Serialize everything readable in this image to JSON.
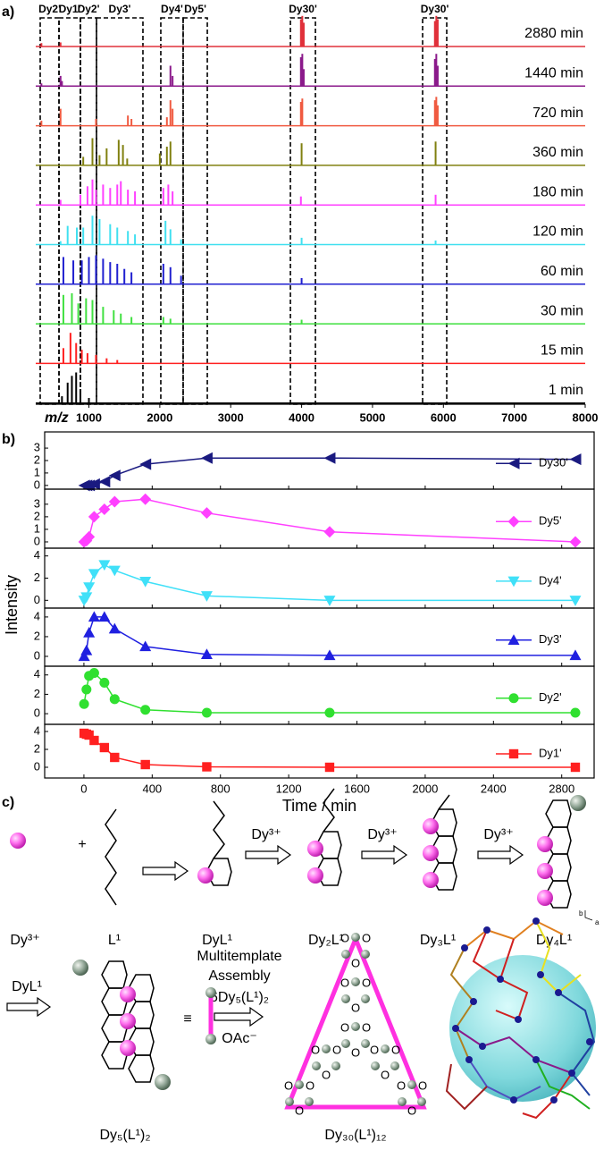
{
  "chart_data": [
    {
      "type": "spectrum",
      "xlabel": "m/z",
      "xlim": [
        250,
        8000
      ],
      "xticks": [
        1000,
        2000,
        3000,
        4000,
        5000,
        6000,
        7000,
        8000
      ],
      "regions": [
        {
          "label": "Dy2'",
          "range": [
            313,
            578
          ]
        },
        {
          "label": "Dy1'",
          "range": [
            578,
            880
          ]
        },
        {
          "label": "Dy2'",
          "range": [
            880,
            1107
          ]
        },
        {
          "label": "Dy3'",
          "range": [
            1107,
            1762
          ]
        },
        {
          "label": "Dy4'",
          "range": [
            2014,
            2329
          ]
        },
        {
          "label": "Dy5'",
          "range": [
            2329,
            2670
          ]
        },
        {
          "label": "Dy30'",
          "range": [
            3842,
            4195
          ]
        },
        {
          "label": "Dy30'",
          "range": [
            5707,
            6047
          ]
        }
      ],
      "series": [
        {
          "name": "2880 min",
          "color": "#e0303a",
          "x": [
            330,
            600,
            3990,
            4010,
            4030,
            5880,
            5900,
            5920
          ],
          "values": [
            10,
            12,
            80,
            90,
            70,
            75,
            90,
            80
          ]
        },
        {
          "name": "1440 min",
          "color": "#8b1a8b",
          "x": [
            330,
            600,
            620,
            2150,
            2180,
            3990,
            4010,
            4030,
            5880,
            5900,
            5920
          ],
          "values": [
            8,
            30,
            15,
            60,
            30,
            85,
            95,
            50,
            80,
            95,
            60
          ]
        },
        {
          "name": "720 min",
          "color": "#f05a40",
          "x": [
            330,
            600,
            1100,
            1550,
            1600,
            2100,
            2150,
            2180,
            3990,
            4010,
            5880,
            5900,
            5920
          ],
          "values": [
            15,
            50,
            20,
            30,
            20,
            25,
            75,
            50,
            70,
            80,
            75,
            85,
            60
          ]
        },
        {
          "name": "360 min",
          "color": "#808010",
          "x": [
            920,
            1050,
            1150,
            1250,
            1420,
            1480,
            1540,
            2000,
            2100,
            2150,
            4000,
            5890
          ],
          "values": [
            25,
            80,
            30,
            50,
            75,
            60,
            20,
            35,
            55,
            70,
            65,
            70
          ]
        },
        {
          "name": "180 min",
          "color": "#ff40ff",
          "x": [
            600,
            880,
            980,
            1050,
            1100,
            1200,
            1300,
            1400,
            1450,
            1550,
            1650,
            2050,
            2120,
            2180,
            3990,
            5890
          ],
          "values": [
            15,
            30,
            55,
            75,
            45,
            60,
            50,
            60,
            70,
            45,
            40,
            50,
            60,
            40,
            25,
            30
          ]
        },
        {
          "name": "120 min",
          "color": "#40e0f0",
          "x": [
            600,
            700,
            830,
            920,
            1050,
            1150,
            1300,
            1400,
            1550,
            1650,
            2080,
            2150,
            2300,
            4000,
            5890
          ],
          "values": [
            10,
            55,
            50,
            50,
            85,
            75,
            60,
            50,
            40,
            30,
            70,
            45,
            15,
            20,
            12
          ]
        },
        {
          "name": "60 min",
          "color": "#2020d0",
          "x": [
            640,
            780,
            900,
            1000,
            1100,
            1200,
            1300,
            1400,
            1500,
            1600,
            2050,
            2150,
            2300,
            4000
          ],
          "values": [
            80,
            70,
            70,
            80,
            85,
            75,
            65,
            60,
            45,
            35,
            60,
            50,
            25,
            18
          ]
        },
        {
          "name": "30 min",
          "color": "#40e040",
          "x": [
            640,
            760,
            850,
            960,
            1050,
            1200,
            1350,
            1450,
            1600,
            2050,
            2150,
            4000
          ],
          "values": [
            85,
            90,
            60,
            75,
            70,
            50,
            40,
            30,
            20,
            20,
            15,
            12
          ]
        },
        {
          "name": "15 min",
          "color": "#ff2020",
          "x": [
            640,
            740,
            820,
            900,
            980,
            1100,
            1250,
            1400
          ],
          "values": [
            45,
            90,
            60,
            40,
            30,
            25,
            15,
            10
          ]
        },
        {
          "name": "1 min",
          "color": "#000000",
          "x": [
            620,
            700,
            760,
            820,
            880,
            1000
          ],
          "values": [
            20,
            60,
            80,
            90,
            40,
            15
          ]
        }
      ]
    },
    {
      "type": "line",
      "xlim": [
        -230,
        2990
      ],
      "ylim": [
        -0.3,
        4.3
      ],
      "yticks": [
        0,
        1,
        2,
        3
      ],
      "legend": "right",
      "x": [
        1,
        15,
        30,
        60,
        120,
        180,
        360,
        720,
        1440,
        2880
      ],
      "series": [
        {
          "name": "Dy30'",
          "color": "#1a1a80",
          "marker": "triangle-left",
          "values": [
            0,
            0,
            0,
            0.1,
            0.3,
            0.8,
            1.7,
            2.2,
            2.2,
            2.1
          ]
        }
      ]
    },
    {
      "type": "line",
      "xlim": [
        -230,
        2990
      ],
      "ylim": [
        -0.5,
        4.2
      ],
      "yticks": [
        0,
        1,
        2,
        3
      ],
      "legend": "right",
      "x": [
        1,
        15,
        30,
        60,
        120,
        180,
        360,
        720,
        1440,
        2880
      ],
      "series": [
        {
          "name": "Dy5'",
          "color": "#ff40ff",
          "marker": "diamond",
          "values": [
            0,
            0.1,
            0.4,
            2.0,
            2.6,
            3.2,
            3.4,
            2.3,
            0.8,
            0
          ]
        }
      ]
    },
    {
      "type": "line",
      "xlim": [
        -230,
        2990
      ],
      "ylim": [
        -0.7,
        4.7
      ],
      "yticks": [
        0,
        2,
        4
      ],
      "legend": "right",
      "x": [
        1,
        15,
        30,
        60,
        120,
        180,
        360,
        720,
        1440,
        2880
      ],
      "series": [
        {
          "name": "Dy4'",
          "color": "#40e0f8",
          "marker": "triangle-down",
          "values": [
            0,
            0.3,
            1.2,
            2.4,
            3.2,
            2.7,
            1.7,
            0.4,
            0,
            0
          ]
        }
      ]
    },
    {
      "type": "line",
      "xlim": [
        -230,
        2990
      ],
      "ylim": [
        -1.0,
        4.9
      ],
      "yticks": [
        0,
        2,
        4
      ],
      "legend": "right",
      "x": [
        1,
        15,
        30,
        60,
        120,
        180,
        360,
        720,
        1440,
        2880
      ],
      "series": [
        {
          "name": "Dy3'",
          "color": "#2020e0",
          "marker": "triangle-up",
          "values": [
            0,
            0.6,
            2.4,
            4.0,
            4.0,
            2.8,
            1.0,
            0.2,
            0.1,
            0.1
          ]
        }
      ]
    },
    {
      "type": "line",
      "xlim": [
        -230,
        2990
      ],
      "ylim": [
        -1.1,
        4.9
      ],
      "yticks": [
        0,
        2,
        4
      ],
      "legend": "right",
      "x": [
        1,
        15,
        30,
        60,
        120,
        180,
        360,
        720,
        1440,
        2880
      ],
      "series": [
        {
          "name": "Dy2'",
          "color": "#30e030",
          "marker": "circle",
          "values": [
            1.0,
            2.5,
            3.9,
            4.2,
            3.2,
            1.5,
            0.4,
            0.1,
            0.1,
            0.1
          ]
        }
      ]
    },
    {
      "type": "line",
      "xlim": [
        -230,
        2990
      ],
      "ylim": [
        -1.2,
        4.8
      ],
      "yticks": [
        0,
        2,
        4
      ],
      "legend": "right",
      "xticks": [
        0,
        400,
        800,
        1200,
        1600,
        2000,
        2400,
        2800
      ],
      "xlabel": "Time / min",
      "ylabel": "Intensity",
      "x": [
        1,
        15,
        30,
        60,
        120,
        180,
        360,
        720,
        1440,
        2880
      ],
      "series": [
        {
          "name": "Dy1'",
          "color": "#ff2020",
          "marker": "square",
          "values": [
            3.8,
            3.7,
            3.6,
            3.0,
            2.2,
            1.1,
            0.3,
            0.05,
            0,
            0
          ]
        }
      ]
    }
  ],
  "figure": {
    "panel_labels": [
      "a)",
      "b)",
      "c)"
    ]
  },
  "scheme": {
    "row1": {
      "labels": [
        "Dy³⁺",
        "L¹",
        "DyL¹",
        "Dy₂L¹",
        "Dy₃L¹",
        "Dy₄L¹"
      ],
      "plus": "+",
      "arrow_labels": [
        "Dy³⁺",
        "Dy³⁺",
        "Dy³⁺"
      ]
    },
    "row2": {
      "start_label": "DyL¹",
      "product_label": "Dy₅(L¹)₂",
      "equiv": "≡",
      "conditions": [
        "Multitemplate",
        "Assembly",
        "6Dy₅(L¹)₂",
        "OAc⁻"
      ],
      "cage": {
        "label": "Dy₃₀(L¹)₁₂",
        "atom_label": "O"
      },
      "axes": [
        "b",
        "a"
      ]
    }
  }
}
